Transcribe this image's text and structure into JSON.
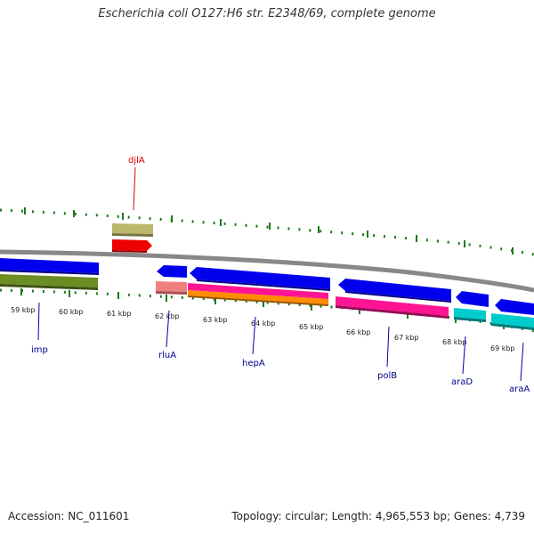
{
  "title": "Escherichia coli O127:H6 str. E2348/69, complete genome",
  "footer": {
    "accession": "Accession: NC_011601",
    "summary": "Topology: circular; Length: 4,965,553 bp; Genes: 4,739"
  },
  "kbp_labels": [
    "59 kbp",
    "60 kbp",
    "61 kbp",
    "62 kbp",
    "63 kbp",
    "64 kbp",
    "65 kbp",
    "66 kbp",
    "67 kbp",
    "68 kbp",
    "69 kbp"
  ],
  "gene_labels": {
    "djlA": "djlA",
    "imp": "imp",
    "rluA": "rluA",
    "hepA": "hepA",
    "polB": "polB",
    "araD": "araD",
    "araA": "araA"
  },
  "colors": {
    "forward_cds": "#0000ee",
    "olive": "#6b8e23",
    "khaki": "#bdb76b",
    "red": "#ee0000",
    "salmon": "#f08080",
    "pink": "#ff1493",
    "orange": "#ff8c00",
    "cyan": "#00cccc",
    "tick": "#1a7a1a",
    "backbone": "#888888",
    "label_blue": "#00008b",
    "label_red": "#dd0000"
  }
}
